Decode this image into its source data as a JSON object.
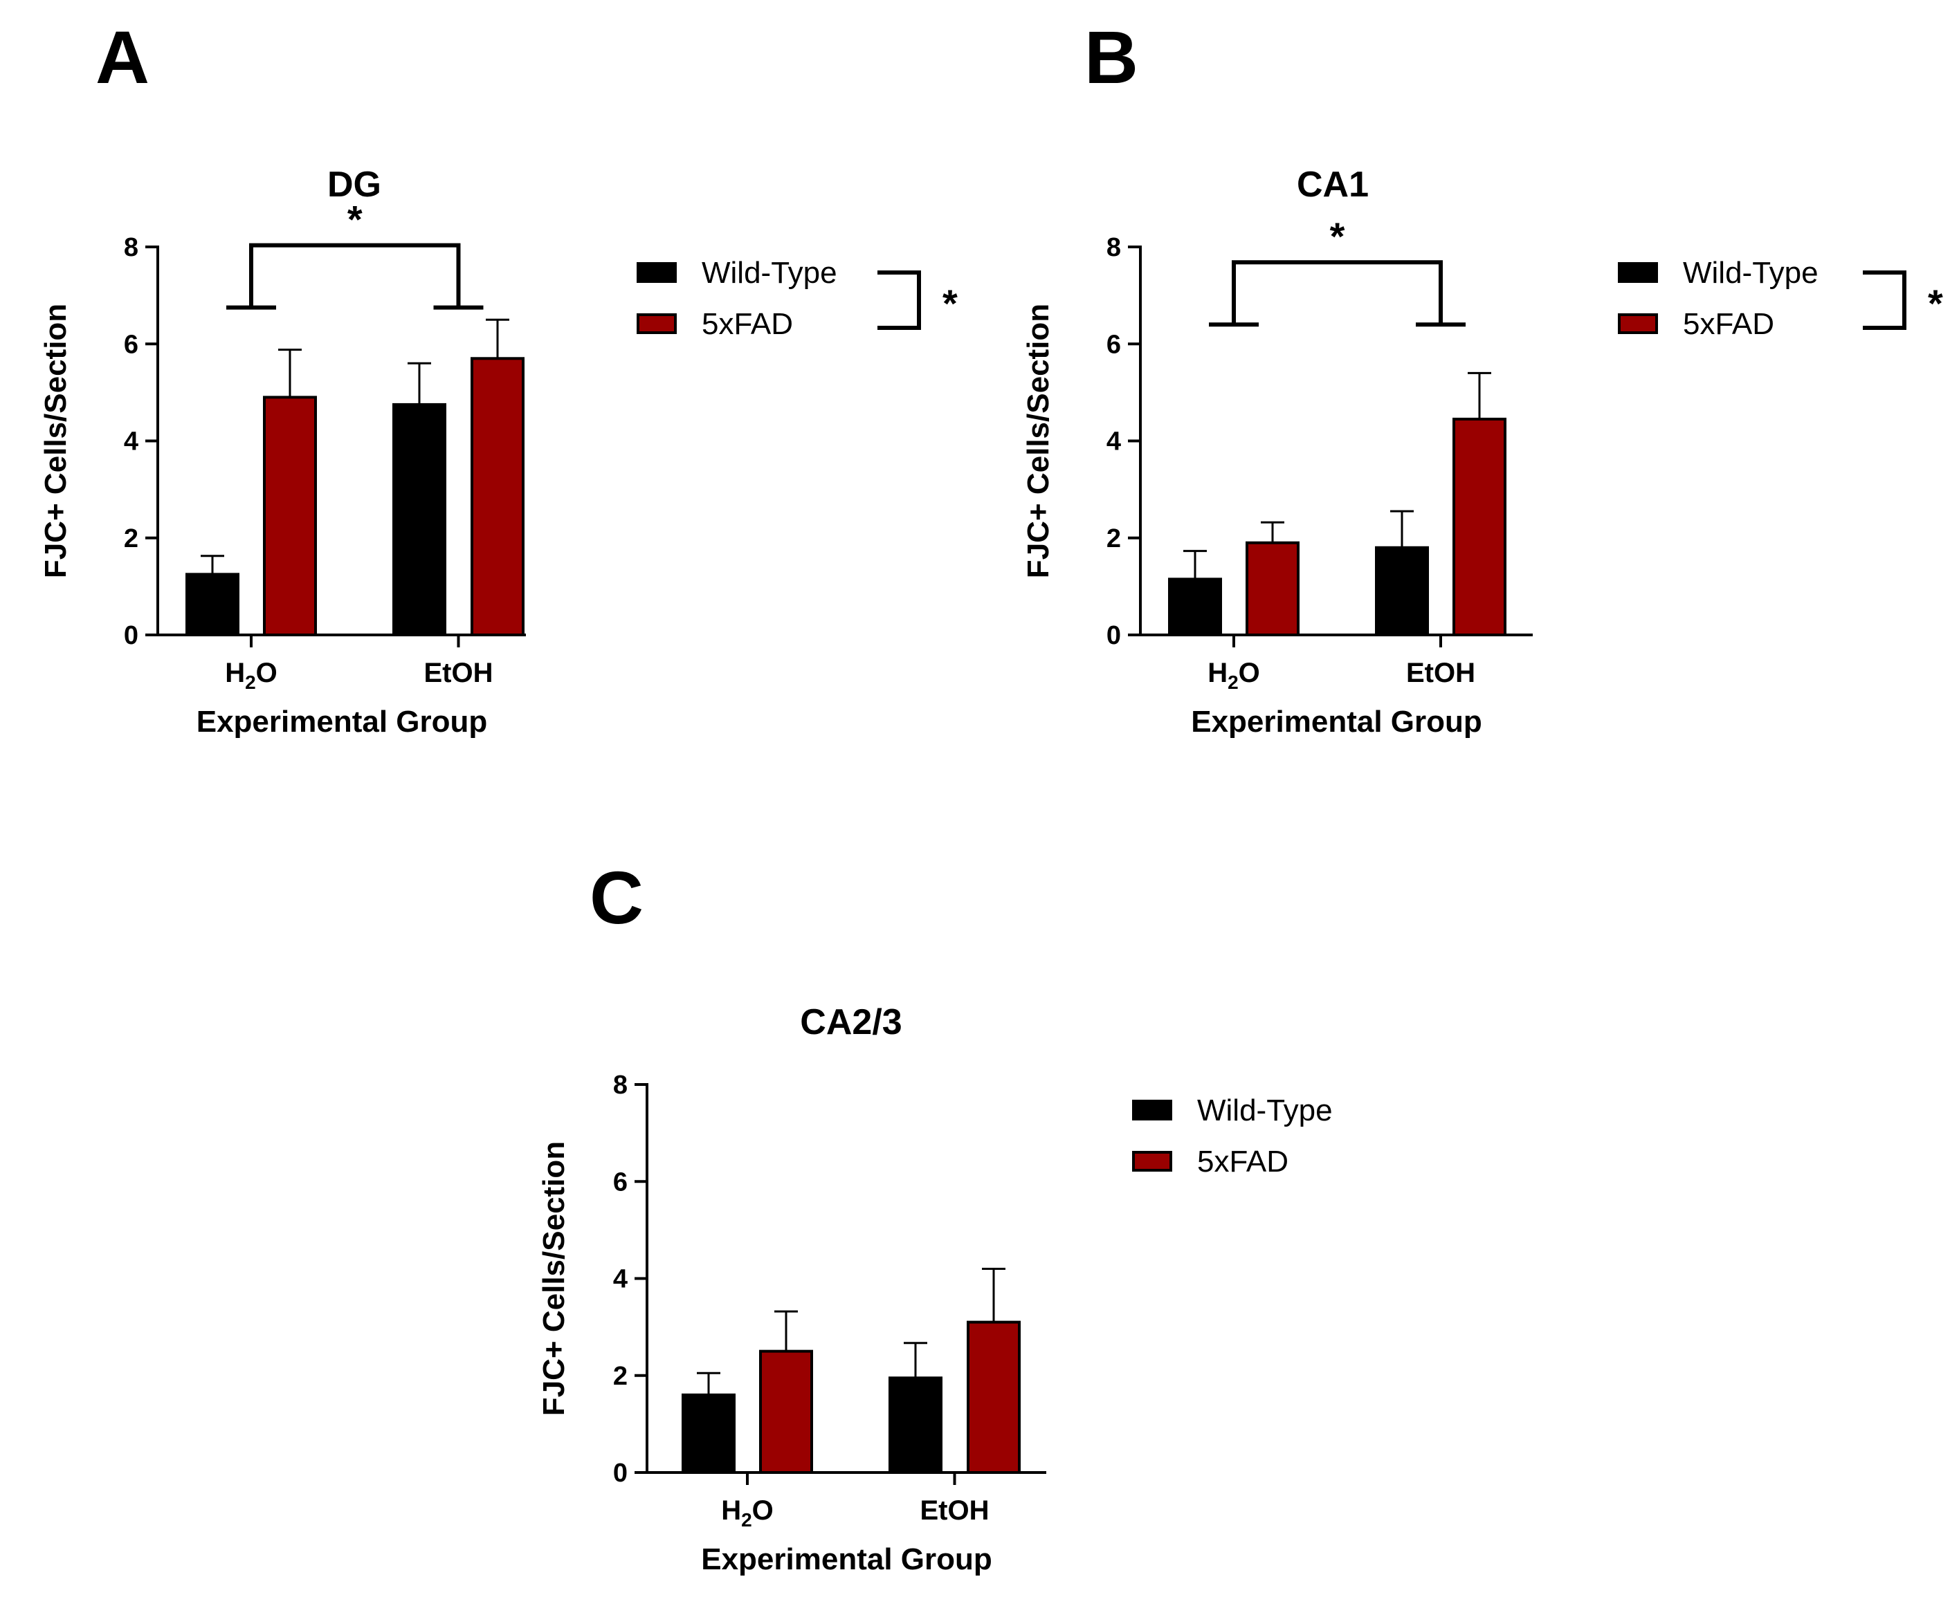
{
  "colors": {
    "wild_type": "#000000",
    "fad": "#990000",
    "axis": "#000000"
  },
  "chart_data": [
    {
      "panel": "A",
      "type": "bar",
      "title": "DG",
      "xlabel": "Experimental Group",
      "ylabel": "FJC+ Cells/Section",
      "categories": [
        {
          "base": "H",
          "sub": "2",
          "rest": "O"
        },
        {
          "base": "EtOH",
          "sub": "",
          "rest": ""
        }
      ],
      "yticks": [
        "0",
        "2",
        "4",
        "6",
        "8"
      ],
      "ylim": [
        0,
        8
      ],
      "series": [
        {
          "name": "Wild-Type",
          "values": [
            1.25,
            4.75
          ],
          "errors": [
            0.38,
            0.85
          ]
        },
        {
          "name": "5xFAD",
          "values": [
            4.9,
            5.7
          ],
          "errors": [
            0.98,
            0.8
          ]
        }
      ],
      "significance": {
        "group_bracket": "*",
        "legend_bracket": "*",
        "group_bracket_y": 6.75
      }
    },
    {
      "panel": "B",
      "type": "bar",
      "title": "CA1",
      "xlabel": "Experimental Group",
      "ylabel": "FJC+ Cells/Section",
      "categories": [
        {
          "base": "H",
          "sub": "2",
          "rest": "O"
        },
        {
          "base": "EtOH",
          "sub": "",
          "rest": ""
        }
      ],
      "yticks": [
        "0",
        "2",
        "4",
        "6",
        "8"
      ],
      "ylim": [
        0,
        8
      ],
      "series": [
        {
          "name": "Wild-Type",
          "values": [
            1.15,
            1.8
          ],
          "errors": [
            0.58,
            0.75
          ]
        },
        {
          "name": "5xFAD",
          "values": [
            1.9,
            4.45
          ],
          "errors": [
            0.42,
            0.95
          ]
        }
      ],
      "significance": {
        "group_bracket": "*",
        "legend_bracket": "*",
        "group_bracket_y": 6.4
      }
    },
    {
      "panel": "C",
      "type": "bar",
      "title": "CA2/3",
      "xlabel": "Experimental Group",
      "ylabel": "FJC+ Cells/Section",
      "categories": [
        {
          "base": "H",
          "sub": "2",
          "rest": "O"
        },
        {
          "base": "EtOH",
          "sub": "",
          "rest": ""
        }
      ],
      "yticks": [
        "0",
        "2",
        "4",
        "6",
        "8"
      ],
      "ylim": [
        0,
        8
      ],
      "series": [
        {
          "name": "Wild-Type",
          "values": [
            1.6,
            1.95
          ],
          "errors": [
            0.45,
            0.72
          ]
        },
        {
          "name": "5xFAD",
          "values": [
            2.5,
            3.1
          ],
          "errors": [
            0.82,
            1.1
          ]
        }
      ],
      "significance": null
    }
  ]
}
